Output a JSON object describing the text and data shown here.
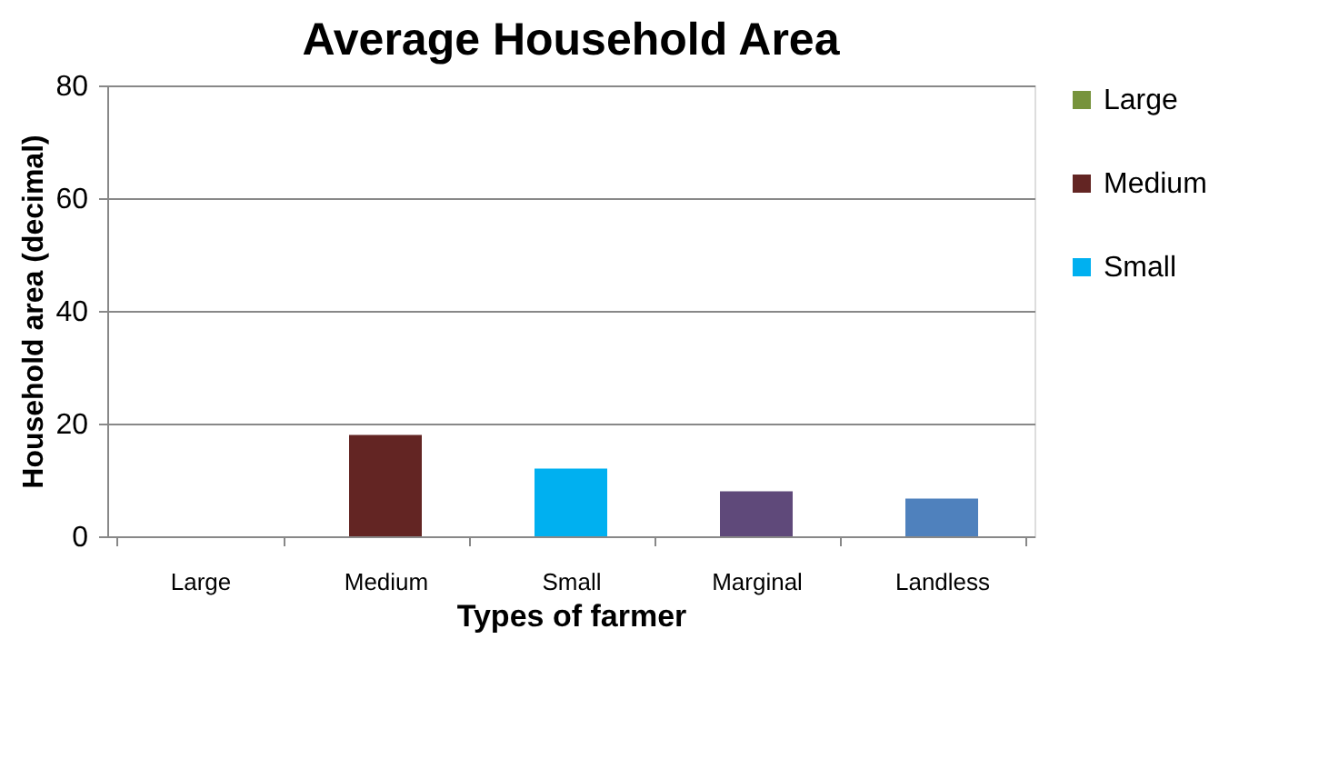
{
  "chart_data": {
    "type": "bar",
    "title": "Average Household Area",
    "xlabel": "Types of farmer",
    "ylabel": "Household area (decimal)",
    "categories": [
      "Large",
      "Medium",
      "Small",
      "Marginal",
      "Landless"
    ],
    "series": [
      {
        "name": "Large",
        "color": "#77933c",
        "values": [
          0,
          null,
          null,
          null,
          null
        ]
      },
      {
        "name": "Medium",
        "color": "#632523",
        "values": [
          null,
          18,
          null,
          null,
          null
        ]
      },
      {
        "name": "Small",
        "color": "#00b0f0",
        "values": [
          null,
          null,
          12,
          null,
          null
        ]
      },
      {
        "color": "#5f497a",
        "values": [
          null,
          null,
          null,
          8,
          null
        ]
      },
      {
        "color": "#4f81bd",
        "values": [
          null,
          null,
          null,
          null,
          6.7
        ]
      }
    ],
    "ylim": [
      0,
      80
    ],
    "yticks": [
      0,
      20,
      40,
      60,
      80
    ],
    "grid": "y",
    "legend": "right"
  }
}
